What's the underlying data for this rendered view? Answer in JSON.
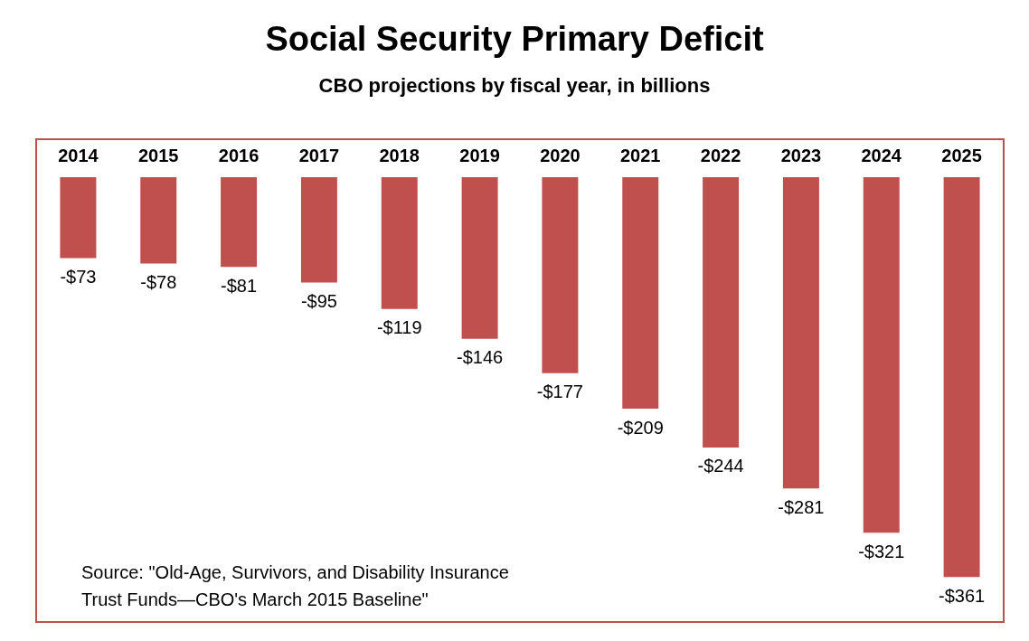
{
  "chart_data": {
    "type": "bar",
    "title": "Social Security Primary Deficit",
    "subtitle": "CBO projections by fiscal year, in billions",
    "categories": [
      "2014",
      "2015",
      "2016",
      "2017",
      "2018",
      "2019",
      "2020",
      "2021",
      "2022",
      "2023",
      "2024",
      "2025"
    ],
    "values": [
      -73,
      -78,
      -81,
      -95,
      -119,
      -146,
      -177,
      -209,
      -244,
      -281,
      -321,
      -361
    ],
    "value_labels": [
      "-$73",
      "-$78",
      "-$81",
      "-$95",
      "-$119",
      "-$146",
      "-$177",
      "-$209",
      "-$244",
      "-$281",
      "-$321",
      "-$361"
    ],
    "color": "#c0504d",
    "grid": false,
    "legend": false,
    "annotations": [
      "Source: \"Old-Age, Survivors, and Disability Insurance\nTrust Funds—CBO's March 2015 Baseline\""
    ]
  }
}
